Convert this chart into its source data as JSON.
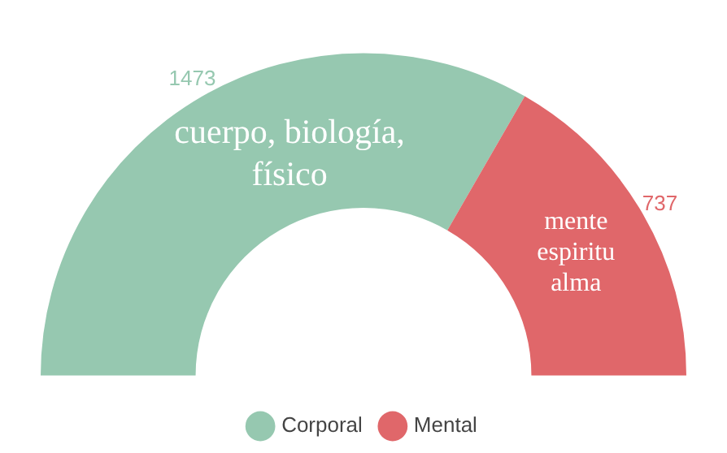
{
  "chart_data": {
    "type": "donut",
    "categories": [
      "Corporal",
      "Mental"
    ],
    "values": [
      1473,
      737
    ],
    "colors": [
      "#96c8b0",
      "#e0676a"
    ],
    "data_labels": true,
    "legend": "bottom",
    "annotations": [
      "cuerpo, biología, físico",
      "mente espiritu alma"
    ]
  }
}
